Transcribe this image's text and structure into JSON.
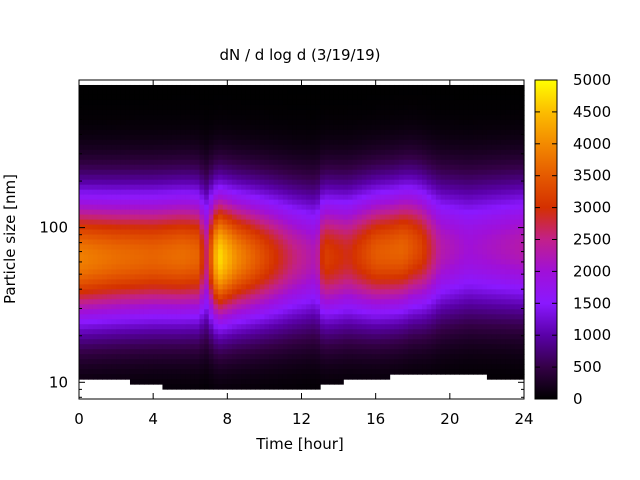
{
  "chart_data": {
    "type": "heatmap",
    "title": "dN / d log d (3/19/19)",
    "xlabel": "Time [hour]",
    "ylabel": "Particle size [nm]",
    "xlim": [
      0,
      24
    ],
    "ylim": [
      7.8,
      900
    ],
    "y_scale": "log",
    "x_ticks": [
      0,
      4,
      8,
      12,
      16,
      20,
      24
    ],
    "y_ticks": [
      10,
      100
    ],
    "colorbar": {
      "range": [
        0,
        5000
      ],
      "ticks": [
        0,
        500,
        1000,
        1500,
        2000,
        2500,
        3000,
        3500,
        4000,
        4500,
        5000
      ],
      "colormap": "gnuplot pm3d (black-purple-red-orange-yellow)",
      "colors": [
        "#000000",
        "#4a0090",
        "#8a18ff",
        "#c2208a",
        "#e13a00",
        "#f38a00",
        "#ffff00"
      ]
    },
    "grid": false,
    "peak_mode_diameter_nm": [
      [
        0,
        63
      ],
      [
        2,
        64
      ],
      [
        4,
        65
      ],
      [
        6,
        66
      ],
      [
        7,
        65
      ],
      [
        7.5,
        64
      ],
      [
        8,
        64
      ],
      [
        10,
        64
      ],
      [
        12,
        64
      ],
      [
        14,
        65
      ],
      [
        16,
        68
      ],
      [
        17,
        70
      ],
      [
        18,
        74
      ],
      [
        19,
        72
      ],
      [
        21,
        74
      ],
      [
        24,
        75
      ]
    ],
    "peak_concentration": [
      [
        0,
        3900
      ],
      [
        2,
        3700
      ],
      [
        4,
        3600
      ],
      [
        5.5,
        3700
      ],
      [
        6.5,
        3600
      ],
      [
        6.8,
        2400
      ],
      [
        7.5,
        4800
      ],
      [
        8.5,
        4000
      ],
      [
        10,
        3300
      ],
      [
        11.5,
        2600
      ],
      [
        12.8,
        2200
      ],
      [
        13.2,
        3200
      ],
      [
        14.5,
        2900
      ],
      [
        16,
        3500
      ],
      [
        17.5,
        3600
      ],
      [
        18.5,
        3200
      ],
      [
        19.5,
        2300
      ],
      [
        21,
        2000
      ],
      [
        24,
        2300
      ]
    ],
    "lower_data_boundary_nm": [
      [
        0,
        10.5
      ],
      [
        1,
        10.3
      ],
      [
        2,
        10.3
      ],
      [
        4,
        9.8
      ],
      [
        5,
        8.8
      ],
      [
        6,
        8.8
      ],
      [
        8,
        8.8
      ],
      [
        10,
        8.8
      ],
      [
        12,
        8.8
      ],
      [
        12.5,
        9.4
      ],
      [
        13,
        9.2
      ],
      [
        13.5,
        10.0
      ],
      [
        15,
        10.2
      ],
      [
        16,
        10.5
      ],
      [
        17.5,
        11.4
      ],
      [
        19,
        11.3
      ],
      [
        20,
        11.5
      ],
      [
        21,
        11.6
      ],
      [
        22,
        10.8
      ],
      [
        24,
        10.8
      ]
    ],
    "upper_data_boundary_nm": 840
  }
}
